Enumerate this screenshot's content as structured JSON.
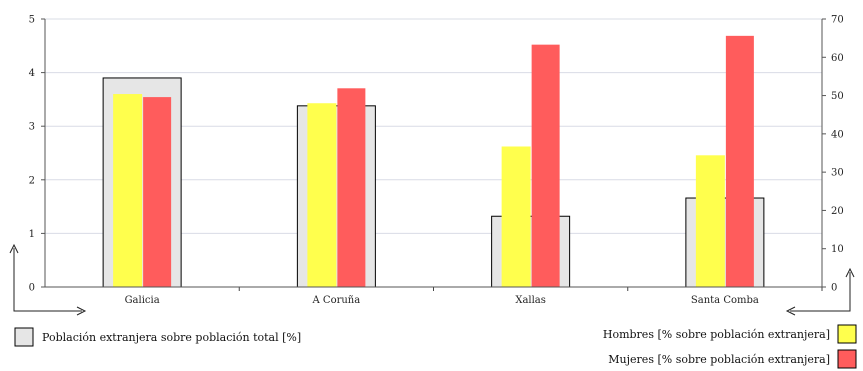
{
  "chart_data": {
    "type": "bar",
    "categories": [
      "Galicia",
      "A Coruña",
      "Xallas",
      "Santa Comba"
    ],
    "left_axis": {
      "ylim": [
        0,
        5
      ],
      "ticks": [
        "0",
        "1",
        "2",
        "3",
        "4",
        "5"
      ]
    },
    "right_axis": {
      "ylim": [
        0,
        70
      ],
      "ticks": [
        "0",
        "10",
        "20",
        "30",
        "40",
        "50",
        "60",
        "70"
      ]
    },
    "grid": true,
    "series": [
      {
        "name": "Población extranjera sobre población total [%]",
        "axis": "left",
        "values": [
          3.9,
          3.38,
          1.32,
          1.66
        ],
        "color": "#e6e6e6",
        "stroke": "#000000",
        "legend_position": "bottom-left"
      },
      {
        "name": "Hombres [% sobre población extranjera]",
        "axis": "right",
        "values": [
          50.4,
          48.0,
          36.7,
          34.4
        ],
        "color": "#ffff4d",
        "legend_position": "bottom-right"
      },
      {
        "name": "Mujeres [% sobre población extranjera]",
        "axis": "right",
        "values": [
          49.6,
          51.9,
          63.3,
          65.6
        ],
        "color": "#ff5c5c",
        "legend_position": "bottom-right"
      }
    ],
    "title": "",
    "xlabel": "",
    "ylabel": ""
  }
}
